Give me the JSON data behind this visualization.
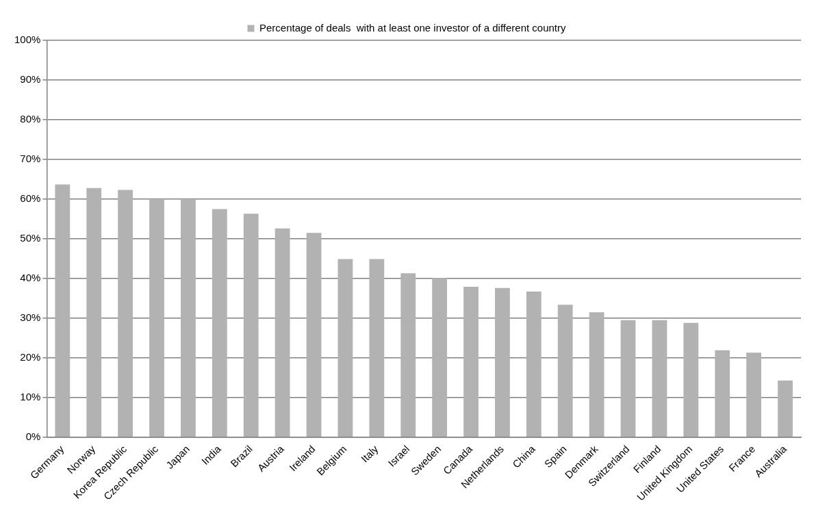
{
  "chart_data": {
    "type": "bar",
    "categories": [
      "Germany",
      "Norway",
      "Korea Republic",
      "Czech Republic",
      "Japan",
      "India",
      "Brazil",
      "Austria",
      "Ireland",
      "Belgium",
      "Italy",
      "Israel",
      "Sweden",
      "Canada",
      "Netherlands",
      "China",
      "Spain",
      "Denmark",
      "Switzerland",
      "Finland",
      "United Kingdom",
      "United States",
      "France",
      "Australia"
    ],
    "series": [
      {
        "name": "Percentage of deals  with at least one investor of a different country",
        "color": "#b2b2b2",
        "values": [
          63.7,
          62.8,
          62.3,
          59.8,
          59.8,
          57.5,
          56.3,
          52.6,
          51.5,
          44.9,
          44.9,
          41.3,
          40.1,
          37.9,
          37.6,
          36.7,
          33.4,
          31.5,
          29.5,
          29.5,
          28.8,
          21.9,
          21.3,
          14.3
        ]
      }
    ],
    "ylim": [
      0,
      100
    ],
    "yticks": [
      {
        "value": 0,
        "label": "0%"
      },
      {
        "value": 10,
        "label": "10%"
      },
      {
        "value": 20,
        "label": "20%"
      },
      {
        "value": 30,
        "label": "30%"
      },
      {
        "value": 40,
        "label": "40%"
      },
      {
        "value": 50,
        "label": "50%"
      },
      {
        "value": 60,
        "label": "60%"
      },
      {
        "value": 70,
        "label": "70%"
      },
      {
        "value": 80,
        "label": "80%"
      },
      {
        "value": 90,
        "label": "90%"
      },
      {
        "value": 100,
        "label": "100%"
      }
    ],
    "grid": "y",
    "legend": "top"
  }
}
